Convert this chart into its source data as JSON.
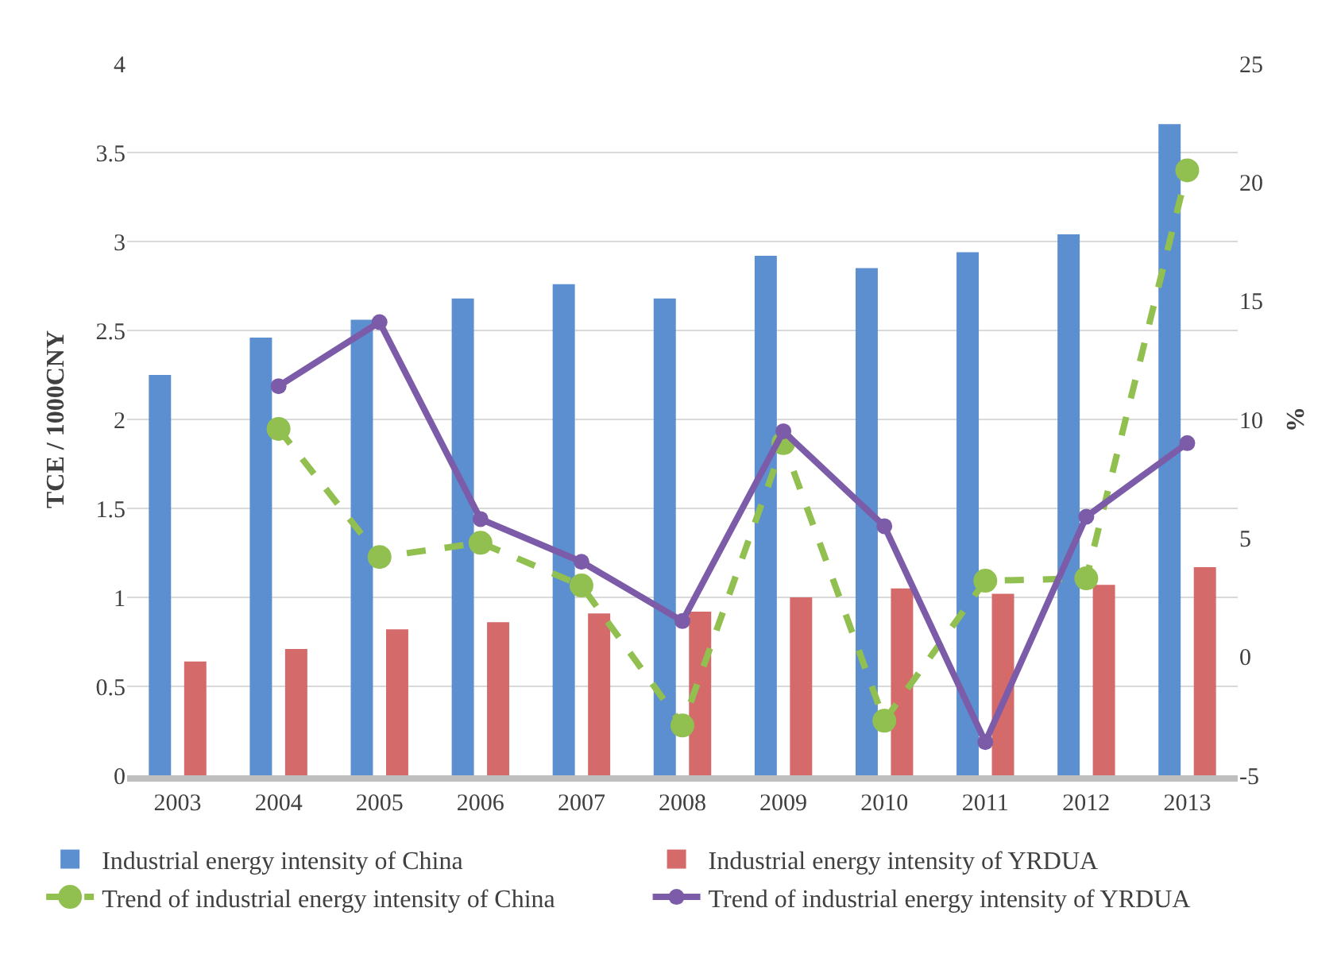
{
  "chart_data": {
    "type": "bar",
    "ylabel": "TCE / 1000CNY",
    "y2label": "%",
    "categories": [
      "2003",
      "2004",
      "2005",
      "2006",
      "2007",
      "2008",
      "2009",
      "2010",
      "2011",
      "2012",
      "2013"
    ],
    "series": [
      {
        "name": "Industrial energy intensity of China",
        "color": "#5b8fd0",
        "values": [
          2.25,
          2.46,
          2.56,
          2.68,
          2.76,
          2.68,
          2.92,
          2.85,
          2.94,
          3.04,
          3.66
        ]
      },
      {
        "name": "Industrial energy intensity of YRDUA",
        "color": "#d46a6a",
        "values": [
          0.64,
          0.71,
          0.82,
          0.86,
          0.91,
          0.92,
          1.0,
          1.05,
          1.02,
          1.07,
          1.17
        ]
      },
      {
        "name": "Trend of industrial energy intensity of China",
        "color": "#92c050",
        "type": "line",
        "axis": "y2",
        "line_style": "dashed",
        "marker": "circle",
        "values": [
          null,
          9.6,
          4.2,
          4.8,
          3.0,
          -2.9,
          9.0,
          -2.7,
          3.2,
          3.3,
          20.5
        ]
      },
      {
        "name": "Trend of industrial energy intensity of YRDUA",
        "color": "#7c5ca8",
        "type": "line",
        "axis": "y2",
        "line_style": "solid",
        "marker": "circle",
        "values": [
          null,
          11.4,
          14.1,
          5.8,
          4.0,
          1.5,
          9.5,
          5.5,
          -3.6,
          5.9,
          9.0
        ]
      }
    ],
    "ylim": [
      0,
      4
    ],
    "yticks": [
      0,
      0.5,
      1,
      1.5,
      2,
      2.5,
      3,
      3.5,
      4
    ],
    "y2lim": [
      -5,
      25
    ],
    "y2ticks": [
      -5,
      0,
      5,
      10,
      15,
      20,
      25
    ],
    "grid": "y",
    "legend": "bottom"
  }
}
